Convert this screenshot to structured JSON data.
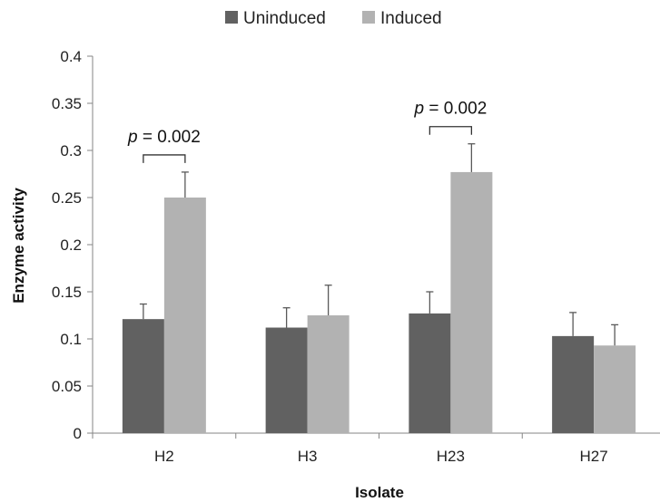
{
  "chart_data": {
    "type": "bar",
    "title": "",
    "xlabel": "Isolate",
    "ylabel": "Enzyme activity",
    "categories": [
      "H2",
      "H3",
      "H23",
      "H27"
    ],
    "series": [
      {
        "name": "Uninduced",
        "color": "#616161",
        "values": [
          0.121,
          0.112,
          0.127,
          0.103
        ],
        "errors": [
          0.016,
          0.021,
          0.023,
          0.025
        ]
      },
      {
        "name": "Induced",
        "color": "#b2b2b2",
        "values": [
          0.25,
          0.125,
          0.277,
          0.093
        ],
        "errors": [
          0.027,
          0.032,
          0.03,
          0.022
        ]
      }
    ],
    "ylim": [
      0,
      0.4
    ],
    "yticks": [
      "0",
      "0.05",
      "0.1",
      "0.15",
      "0.2",
      "0.25",
      "0.3",
      "0.35",
      "0.4"
    ],
    "grid": false,
    "legend_position": "top-center",
    "annotations": [
      {
        "category": "H2",
        "label_italic": "p",
        "label_rest": " = 0.002"
      },
      {
        "category": "H23",
        "label_italic": "p",
        "label_rest": " = 0.002"
      }
    ]
  }
}
